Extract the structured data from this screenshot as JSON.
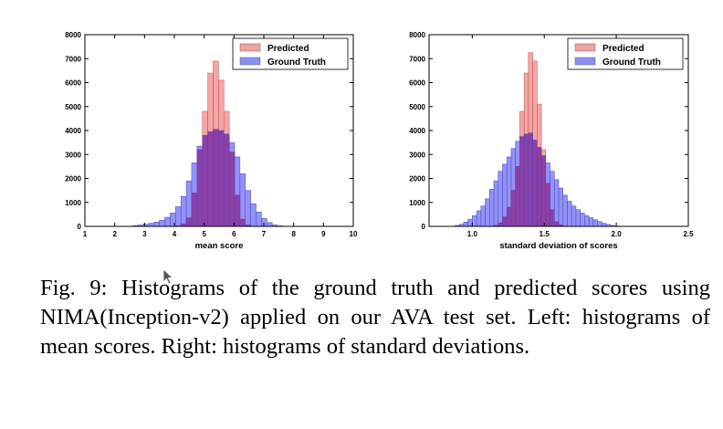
{
  "colors": {
    "predicted": "#f08080",
    "predicted_edge": "#c05050",
    "ground_truth": "#7f7ff8",
    "ground_truth_edge": "#4a4ab8",
    "overlap": "#7a2ea8"
  },
  "chart_data": [
    {
      "type": "histogram",
      "xlabel": "mean score",
      "ylabel": "",
      "xlim": [
        1,
        10
      ],
      "ylim": [
        0,
        8000
      ],
      "xticks": [
        "1",
        "2",
        "3",
        "4",
        "5",
        "6",
        "7",
        "8",
        "9",
        "10"
      ],
      "yticks": [
        "0",
        "1000",
        "2000",
        "3000",
        "4000",
        "5000",
        "6000",
        "7000",
        "8000"
      ],
      "legend": {
        "position": "top-right",
        "entries": [
          "Predicted",
          "Ground Truth"
        ]
      },
      "bin_width": 0.18,
      "bin_start": 2.6,
      "series": [
        {
          "name": "Ground Truth",
          "values": [
            30,
            60,
            90,
            130,
            180,
            260,
            380,
            560,
            820,
            1250,
            1900,
            2650,
            3350,
            3800,
            3950,
            4050,
            4000,
            3850,
            3500,
            2900,
            2200,
            1500,
            950,
            600,
            340,
            160,
            60,
            20,
            5
          ]
        },
        {
          "name": "Predicted",
          "values": [
            0,
            0,
            0,
            0,
            0,
            0,
            0,
            0,
            20,
            100,
            350,
            1400,
            3200,
            4800,
            6400,
            6900,
            6100,
            4800,
            3100,
            1300,
            300,
            60,
            10,
            0,
            0,
            0,
            0,
            0,
            0
          ]
        }
      ]
    },
    {
      "type": "histogram",
      "xlabel": "standard deviation of scores",
      "ylabel": "",
      "xlim": [
        0.7,
        2.5
      ],
      "ylim": [
        0,
        8000
      ],
      "xticks": [
        "1.0",
        "1.5",
        "2.0",
        "2.5"
      ],
      "yticks": [
        "0",
        "1000",
        "2000",
        "3000",
        "4000",
        "5000",
        "6000",
        "7000",
        "8000"
      ],
      "legend": {
        "position": "top-right",
        "entries": [
          "Predicted",
          "Ground Truth"
        ]
      },
      "bin_width": 0.03,
      "bin_start": 0.88,
      "series": [
        {
          "name": "Ground Truth",
          "values": [
            40,
            90,
            180,
            300,
            450,
            650,
            850,
            1150,
            1550,
            1900,
            2300,
            2600,
            2900,
            3250,
            3550,
            3750,
            3850,
            3900,
            3600,
            3300,
            2950,
            2650,
            2300,
            1950,
            1600,
            1300,
            1050,
            850,
            700,
            560,
            450,
            360,
            280,
            200,
            130,
            80,
            40,
            15
          ]
        },
        {
          "name": "Predicted",
          "values": [
            0,
            0,
            0,
            0,
            0,
            0,
            0,
            0,
            0,
            50,
            150,
            400,
            800,
            1500,
            2500,
            4800,
            6400,
            7250,
            6900,
            5100,
            3200,
            1800,
            700,
            200,
            60,
            15,
            0,
            0,
            0,
            0,
            0,
            0,
            0,
            0,
            0,
            0,
            0,
            0
          ]
        }
      ]
    }
  ],
  "caption": "Fig. 9: Histograms of the ground truth and predicted scores using NIMA(Inception-v2) applied on our AVA test set. Left: histograms of mean scores. Right: histograms of standard deviations."
}
